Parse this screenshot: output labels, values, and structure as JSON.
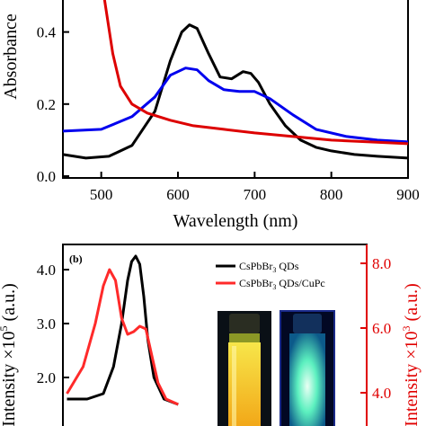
{
  "chart_data": [
    {
      "type": "line",
      "panel": "",
      "xlabel": "Wavelength (nm)",
      "ylabel": "Absorbance",
      "xlim": [
        450,
        900
      ],
      "ylim": [
        0.0,
        0.55
      ],
      "x_ticks": [
        "500",
        "600",
        "700",
        "800",
        "900"
      ],
      "y_ticks": [
        "0.0",
        "0.2",
        "0.4"
      ],
      "series": [
        {
          "color": "#000000",
          "x": [
            450,
            480,
            510,
            540,
            570,
            590,
            605,
            615,
            625,
            640,
            655,
            670,
            685,
            695,
            705,
            720,
            740,
            760,
            780,
            800,
            830,
            860,
            900
          ],
          "y": [
            0.06,
            0.05,
            0.055,
            0.085,
            0.18,
            0.32,
            0.4,
            0.42,
            0.41,
            0.34,
            0.275,
            0.27,
            0.29,
            0.285,
            0.26,
            0.2,
            0.14,
            0.1,
            0.08,
            0.07,
            0.06,
            0.055,
            0.05
          ]
        },
        {
          "color": "#0000ee",
          "x": [
            450,
            500,
            540,
            570,
            590,
            610,
            625,
            640,
            660,
            680,
            700,
            720,
            750,
            780,
            820,
            860,
            900
          ],
          "y": [
            0.125,
            0.13,
            0.165,
            0.22,
            0.28,
            0.3,
            0.295,
            0.265,
            0.24,
            0.235,
            0.235,
            0.215,
            0.17,
            0.13,
            0.11,
            0.1,
            0.095
          ]
        },
        {
          "color": "#dd0000",
          "x": [
            500,
            505,
            515,
            525,
            540,
            560,
            590,
            620,
            660,
            700,
            750,
            800,
            850,
            900
          ],
          "y": [
            0.55,
            0.48,
            0.34,
            0.25,
            0.2,
            0.175,
            0.155,
            0.14,
            0.13,
            0.12,
            0.11,
            0.1,
            0.095,
            0.09
          ]
        }
      ]
    },
    {
      "type": "line",
      "panel": "(b)",
      "ylabel_left": "Intensity ×10",
      "ylabel_left_sup": "5",
      "ylabel_left_unit": " (a.u.)",
      "ylabel_right": "Intensity ×10",
      "ylabel_right_sup": "3",
      "ylabel_right_unit": " (a.u.)",
      "left_ticks": [
        "4.0",
        "3.0",
        "2.0"
      ],
      "right_ticks": [
        "8.0",
        "6.0",
        "4.0"
      ],
      "legend": [
        {
          "text": "CsPbBr",
          "sub": "3",
          "tail": " QDs",
          "color": "#000000"
        },
        {
          "text": "CsPbBr",
          "sub": "3",
          "tail": " QDs/CuPc",
          "color": "#ff2a2a"
        }
      ],
      "series": [
        {
          "color": "#000000",
          "x": [
            470,
            480,
            488,
            493,
            497,
            500,
            502,
            504,
            506,
            508,
            510,
            513,
            518,
            525
          ],
          "y": [
            1.6,
            1.6,
            1.7,
            2.2,
            3.0,
            3.8,
            4.15,
            4.25,
            4.1,
            3.5,
            2.7,
            2.0,
            1.6,
            1.5
          ]
        },
        {
          "color": "#ff2a2a",
          "x": [
            470,
            478,
            484,
            488,
            491,
            494,
            497,
            500,
            503,
            506,
            509,
            512,
            515,
            519,
            525
          ],
          "y": [
            1.7,
            2.2,
            3.0,
            3.7,
            4.0,
            3.8,
            3.1,
            2.8,
            2.85,
            2.95,
            2.9,
            2.4,
            1.9,
            1.6,
            1.5
          ]
        }
      ]
    }
  ],
  "colors": {
    "black_series": "#000000",
    "blue_series": "#0000ee",
    "red_series": "#dd0000",
    "right_axis": "#e00000",
    "vial_frame": "#1a2a8a"
  }
}
